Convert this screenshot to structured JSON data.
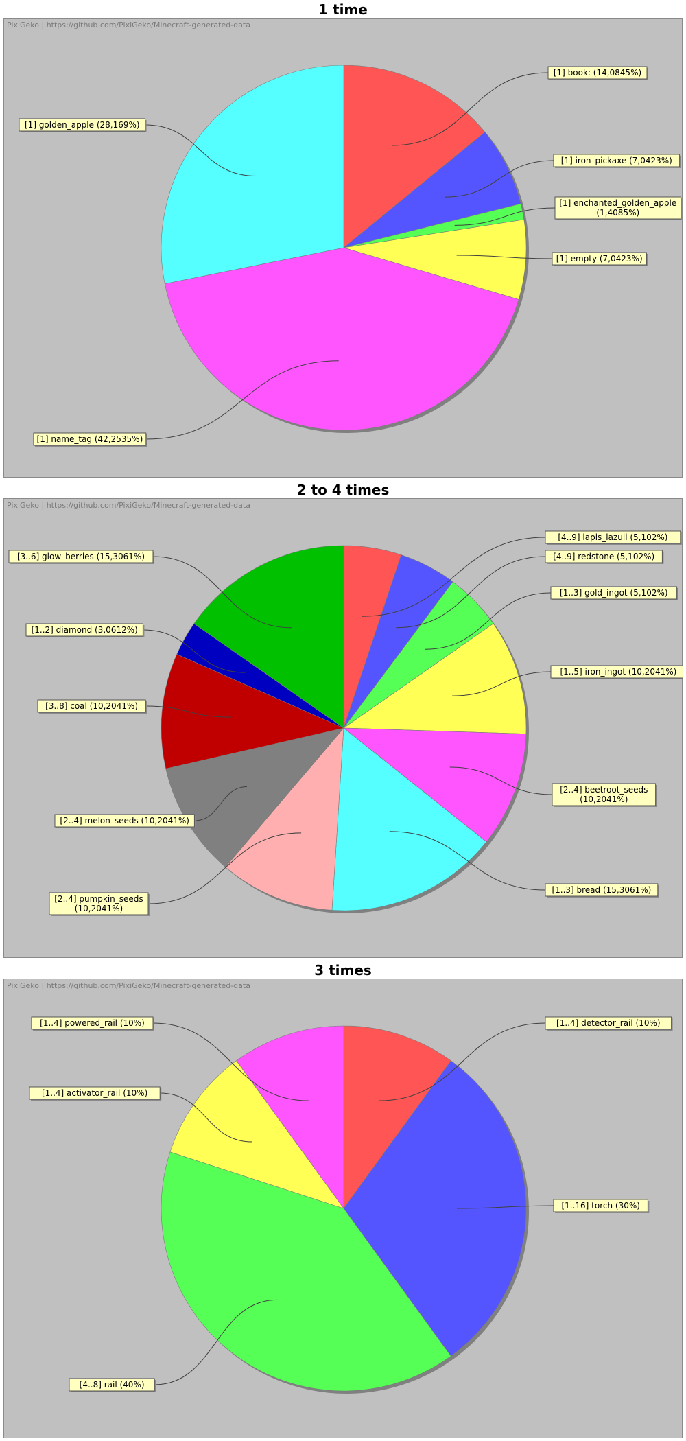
{
  "watermark": "PixiGeko | https://github.com/PixiGeko/Minecraft-generated-data",
  "chart_data": [
    {
      "type": "pie",
      "title": "1 time",
      "slices": [
        {
          "label": "[1] book: (14,0845%)",
          "value": 14.0845,
          "color": "#ff5555"
        },
        {
          "label": "[1] iron_pickaxe (7,0423%)",
          "value": 7.0423,
          "color": "#5555ff"
        },
        {
          "label": "[1] enchanted_golden_apple (1,4085%)",
          "value": 1.4085,
          "color": "#55ff55"
        },
        {
          "label": "[1] empty (7,0423%)",
          "value": 7.0423,
          "color": "#ffff55"
        },
        {
          "label": "[1] name_tag (42,2535%)",
          "value": 42.2535,
          "color": "#ff55ff"
        },
        {
          "label": "[1] golden_apple (28,169%)",
          "value": 28.169,
          "color": "#55ffff"
        }
      ]
    },
    {
      "type": "pie",
      "title": "2 to 4 times",
      "slices": [
        {
          "label": "[4..9] lapis_lazuli (5,102%)",
          "value": 5.102,
          "color": "#ff5555"
        },
        {
          "label": "[4..9] redstone (5,102%)",
          "value": 5.102,
          "color": "#5555ff"
        },
        {
          "label": "[1..3] gold_ingot (5,102%)",
          "value": 5.102,
          "color": "#55ff55"
        },
        {
          "label": "[1..5] iron_ingot (10,2041%)",
          "value": 10.2041,
          "color": "#ffff55"
        },
        {
          "label": "[2..4] beetroot_seeds (10,2041%)",
          "value": 10.2041,
          "color": "#ff55ff"
        },
        {
          "label": "[1..3] bread (15,3061%)",
          "value": 15.3061,
          "color": "#55ffff"
        },
        {
          "label": "[2..4] pumpkin_seeds (10,2041%)",
          "value": 10.2041,
          "color": "#ffafaf"
        },
        {
          "label": "[2..4] melon_seeds (10,2041%)",
          "value": 10.2041,
          "color": "#808080"
        },
        {
          "label": "[3..8] coal (10,2041%)",
          "value": 10.2041,
          "color": "#c00000"
        },
        {
          "label": "[1..2] diamond (3,0612%)",
          "value": 3.0612,
          "color": "#0000c0"
        },
        {
          "label": "[3..6] glow_berries (15,3061%)",
          "value": 15.3061,
          "color": "#00c000"
        }
      ]
    },
    {
      "type": "pie",
      "title": "3 times",
      "slices": [
        {
          "label": "[1..4] detector_rail (10%)",
          "value": 10,
          "color": "#ff5555"
        },
        {
          "label": "[1..16] torch (30%)",
          "value": 30,
          "color": "#5555ff"
        },
        {
          "label": "[4..8] rail (40%)",
          "value": 40,
          "color": "#55ff55"
        },
        {
          "label": "[1..4] activator_rail (10%)",
          "value": 10,
          "color": "#ffff55"
        },
        {
          "label": "[1..4] powered_rail (10%)",
          "value": 10,
          "color": "#ff55ff"
        }
      ]
    }
  ]
}
